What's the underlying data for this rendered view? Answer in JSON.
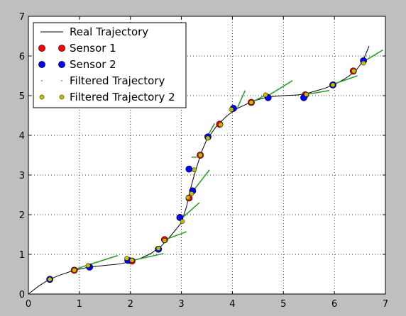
{
  "chart_data": {
    "type": "scatter",
    "title": "",
    "xlabel": "",
    "ylabel": "",
    "xlim": [
      0,
      7
    ],
    "ylim": [
      0,
      7
    ],
    "xticks": [
      "0",
      "1",
      "2",
      "3",
      "4",
      "5",
      "6",
      "7"
    ],
    "yticks": [
      "0",
      "1",
      "2",
      "3",
      "4",
      "5",
      "6",
      "7"
    ],
    "grid": true,
    "legend_position": "top-left",
    "colors": {
      "real": "#000000",
      "sensor1": "#ff0000",
      "sensor2": "#0000ff",
      "filtered": "#2ca02c",
      "filtered2": "#bfbf00"
    },
    "legend": [
      {
        "key": "real",
        "label": "Real Trajectory"
      },
      {
        "key": "sensor1",
        "label": "Sensor 1"
      },
      {
        "key": "sensor2",
        "label": "Sensor 2"
      },
      {
        "key": "filtered",
        "label": "Filtered Trajectory"
      },
      {
        "key": "filtered2",
        "label": "Filtered Trajectory 2"
      }
    ],
    "series": [
      {
        "key": "real",
        "name": "Real Trajectory",
        "kind": "line",
        "points": [
          [
            0,
            0
          ],
          [
            0.2,
            0.2
          ],
          [
            0.4,
            0.36
          ],
          [
            0.6,
            0.47
          ],
          [
            0.9,
            0.6
          ],
          [
            1.2,
            0.68
          ],
          [
            1.5,
            0.72
          ],
          [
            1.8,
            0.76
          ],
          [
            2.0,
            0.82
          ],
          [
            2.2,
            0.9
          ],
          [
            2.4,
            1.02
          ],
          [
            2.6,
            1.2
          ],
          [
            2.8,
            1.48
          ],
          [
            3.0,
            1.8
          ],
          [
            3.1,
            2.2
          ],
          [
            3.15,
            2.5
          ],
          [
            3.22,
            2.85
          ],
          [
            3.3,
            3.2
          ],
          [
            3.4,
            3.6
          ],
          [
            3.5,
            3.9
          ],
          [
            3.7,
            4.25
          ],
          [
            3.9,
            4.5
          ],
          [
            4.1,
            4.68
          ],
          [
            4.3,
            4.8
          ],
          [
            4.5,
            4.9
          ],
          [
            4.7,
            4.97
          ],
          [
            5.0,
            5.0
          ],
          [
            5.3,
            5.02
          ],
          [
            5.5,
            5.07
          ],
          [
            5.8,
            5.18
          ],
          [
            6.0,
            5.28
          ],
          [
            6.2,
            5.42
          ],
          [
            6.4,
            5.6
          ],
          [
            6.55,
            5.85
          ],
          [
            6.68,
            6.25
          ]
        ]
      },
      {
        "key": "sensor1",
        "name": "Sensor 1",
        "kind": "marker",
        "points": [
          [
            0.9,
            0.6
          ],
          [
            2.03,
            0.83
          ],
          [
            2.67,
            1.37
          ],
          [
            3.15,
            2.42
          ],
          [
            3.37,
            3.5
          ],
          [
            3.75,
            4.28
          ],
          [
            4.37,
            4.83
          ],
          [
            5.43,
            5.02
          ],
          [
            6.37,
            5.62
          ]
        ]
      },
      {
        "key": "sensor2",
        "name": "Sensor 2",
        "kind": "marker",
        "points": [
          [
            0.42,
            0.37
          ],
          [
            1.2,
            0.68
          ],
          [
            1.95,
            0.85
          ],
          [
            2.55,
            1.13
          ],
          [
            2.97,
            1.93
          ],
          [
            3.15,
            3.15
          ],
          [
            3.22,
            2.6
          ],
          [
            3.52,
            3.96
          ],
          [
            4.02,
            4.68
          ],
          [
            4.7,
            4.95
          ],
          [
            5.4,
            4.95
          ],
          [
            5.97,
            5.27
          ],
          [
            6.57,
            5.88
          ]
        ]
      },
      {
        "key": "filtered",
        "name": "Filtered Trajectory",
        "kind": "segments",
        "segments": [
          [
            [
              0.9,
              0.62
            ],
            [
              1.75,
              0.97
            ]
          ],
          [
            [
              2.05,
              0.85
            ],
            [
              2.65,
              1.02
            ]
          ],
          [
            [
              2.7,
              1.38
            ],
            [
              3.1,
              1.57
            ]
          ],
          [
            [
              3.0,
              1.9
            ],
            [
              3.35,
              2.3
            ]
          ],
          [
            [
              3.2,
              2.55
            ],
            [
              3.55,
              3.13
            ]
          ],
          [
            [
              3.3,
              3.45
            ],
            [
              3.2,
              3.45
            ]
          ],
          [
            [
              3.5,
              3.95
            ],
            [
              3.65,
              4.3
            ]
          ],
          [
            [
              4.1,
              4.7
            ],
            [
              4.25,
              5.13
            ]
          ],
          [
            [
              4.4,
              4.85
            ],
            [
              4.7,
              5.05
            ]
          ],
          [
            [
              4.7,
              5.0
            ],
            [
              5.18,
              5.38
            ]
          ],
          [
            [
              5.45,
              5.03
            ],
            [
              5.9,
              5.13
            ]
          ],
          [
            [
              6.0,
              5.3
            ],
            [
              6.45,
              5.5
            ]
          ],
          [
            [
              6.6,
              5.88
            ],
            [
              6.95,
              6.15
            ]
          ]
        ]
      },
      {
        "key": "filtered2",
        "name": "Filtered Trajectory 2",
        "kind": "marker",
        "points": [
          [
            0.42,
            0.37
          ],
          [
            0.9,
            0.6
          ],
          [
            1.17,
            0.72
          ],
          [
            1.93,
            0.9
          ],
          [
            2.03,
            0.85
          ],
          [
            2.55,
            1.15
          ],
          [
            2.67,
            1.35
          ],
          [
            3.02,
            1.83
          ],
          [
            3.13,
            2.43
          ],
          [
            3.2,
            2.53
          ],
          [
            3.25,
            3.13
          ],
          [
            3.37,
            3.5
          ],
          [
            3.52,
            3.93
          ],
          [
            3.77,
            4.27
          ],
          [
            3.98,
            4.65
          ],
          [
            4.37,
            4.83
          ],
          [
            4.65,
            5.02
          ],
          [
            5.45,
            5.03
          ],
          [
            5.97,
            5.27
          ],
          [
            6.38,
            5.62
          ],
          [
            6.57,
            5.82
          ]
        ]
      }
    ]
  }
}
